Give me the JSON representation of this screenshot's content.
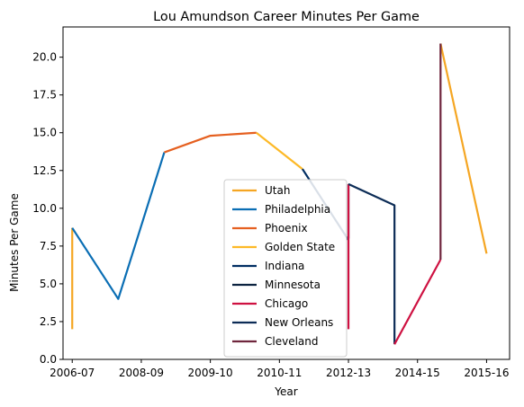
{
  "chart_data": {
    "type": "line",
    "title": "Lou Amundson Career Minutes Per Game",
    "xlabel": "Year",
    "ylabel": "Minutes Per Game",
    "xlim": [
      -0.2,
      9.5
    ],
    "ylim": [
      0,
      22
    ],
    "x_ticks": [
      {
        "pos": 0,
        "label": "2006-07"
      },
      {
        "pos": 1.5,
        "label": "2008-09"
      },
      {
        "pos": 3,
        "label": "2009-10"
      },
      {
        "pos": 4.5,
        "label": "2010-11"
      },
      {
        "pos": 6,
        "label": "2012-13"
      },
      {
        "pos": 7.5,
        "label": "2014-15"
      },
      {
        "pos": 9,
        "label": "2015-16"
      }
    ],
    "y_ticks": [
      {
        "value": 0,
        "label": "0.0"
      },
      {
        "value": 2.5,
        "label": "2.5"
      },
      {
        "value": 5,
        "label": "5.0"
      },
      {
        "value": 7.5,
        "label": "7.5"
      },
      {
        "value": 10,
        "label": "10.0"
      },
      {
        "value": 12.5,
        "label": "12.5"
      },
      {
        "value": 15,
        "label": "15.0"
      },
      {
        "value": 17.5,
        "label": "17.5"
      },
      {
        "value": 20,
        "label": "20.0"
      }
    ],
    "grid": false,
    "legend_position": "lower-center",
    "series": [
      {
        "name": "Utah",
        "color": "#F5A623",
        "points": [
          [
            0,
            2.0
          ],
          [
            0,
            8.7
          ]
        ]
      },
      {
        "name": "Utah",
        "color": "#F5A623",
        "points": [
          [
            8.0,
            20.9
          ],
          [
            9.0,
            7.0
          ]
        ],
        "hide_legend": true
      },
      {
        "name": "Philadelphia",
        "color": "#0A6EB4",
        "points": [
          [
            0,
            8.7
          ],
          [
            1.0,
            4.0
          ],
          [
            2.0,
            13.7
          ]
        ]
      },
      {
        "name": "Phoenix",
        "color": "#E56020",
        "points": [
          [
            2.0,
            13.7
          ],
          [
            3.0,
            14.8
          ],
          [
            4.0,
            15.0
          ]
        ]
      },
      {
        "name": "Golden State",
        "color": "#FDB927",
        "points": [
          [
            4.0,
            15.0
          ],
          [
            5.0,
            12.6
          ]
        ]
      },
      {
        "name": "Indiana",
        "color": "#002D62",
        "points": [
          [
            5.0,
            12.6
          ],
          [
            6.0,
            7.9
          ]
        ]
      },
      {
        "name": "Minnesota",
        "color": "#0C2340",
        "points": [
          [
            6.0,
            8.0
          ],
          [
            6.0,
            11.6
          ]
        ]
      },
      {
        "name": "Chicago",
        "color": "#CE1141",
        "points": [
          [
            6.0,
            2.0
          ],
          [
            6.0,
            11.6
          ]
        ]
      },
      {
        "name": "New Orleans",
        "color": "#0C2C56",
        "points": [
          [
            6.0,
            11.6
          ],
          [
            7.0,
            10.2
          ],
          [
            7.0,
            1.0
          ]
        ]
      },
      {
        "name": "Chicago",
        "color": "#CE1141",
        "points": [
          [
            7.0,
            1.0
          ],
          [
            8.0,
            6.6
          ]
        ],
        "hide_legend": true
      },
      {
        "name": "Cleveland",
        "color": "#6F263D",
        "points": [
          [
            8.0,
            6.6
          ],
          [
            8.0,
            20.9
          ]
        ]
      }
    ]
  }
}
